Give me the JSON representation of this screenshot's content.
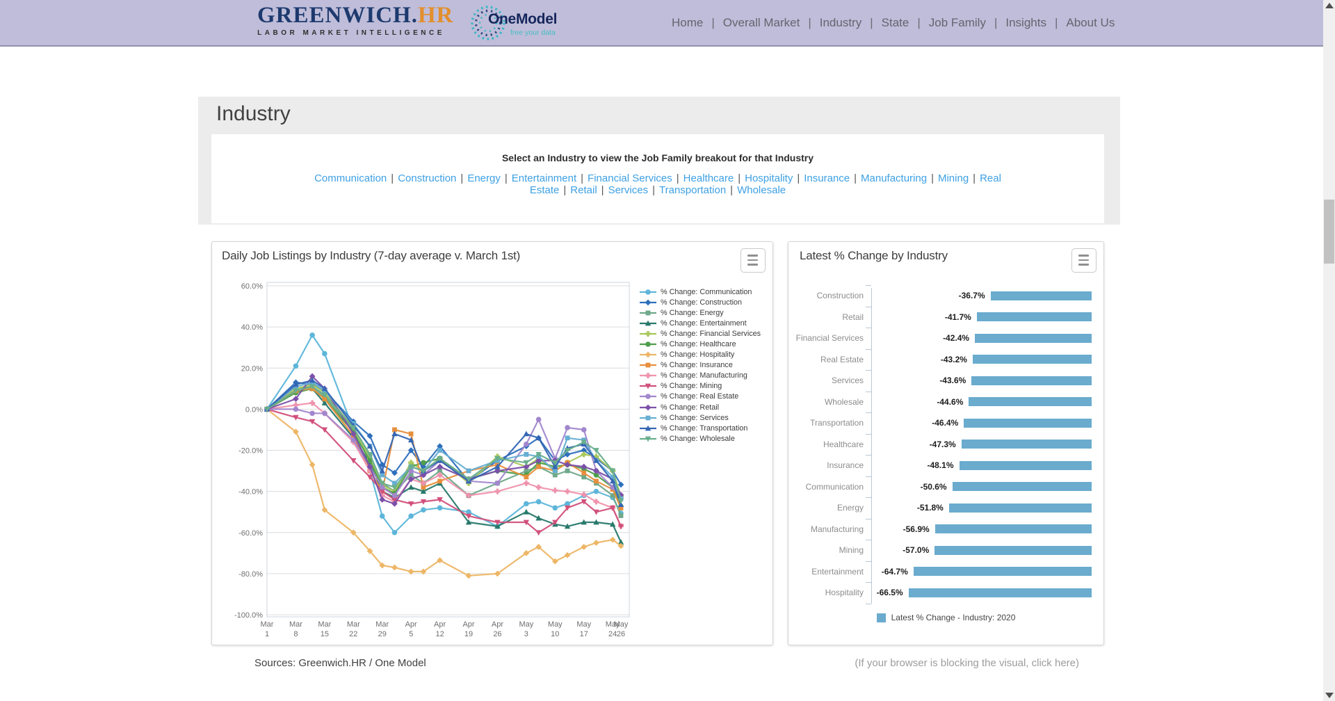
{
  "header": {
    "brand": {
      "name": "GREENWICH.",
      "hr": "HR",
      "tagline": "LABOR MARKET INTELLIGENCE"
    },
    "partner": {
      "name": "OneModel",
      "tagline": "free your data"
    },
    "nav": [
      "Home",
      "Overall Market",
      "Industry",
      "State",
      "Job Family",
      "Insights",
      "About Us"
    ],
    "nav_separator": "|"
  },
  "page": {
    "title": "Industry",
    "selector": {
      "prompt": "Select an Industry to view the Job Family breakout for that Industry",
      "links": [
        "Communication",
        "Construction",
        "Energy",
        "Entertainment",
        "Financial Services",
        "Healthcare",
        "Hospitality",
        "Insurance",
        "Manufacturing",
        "Mining",
        "Real Estate",
        "Retail",
        "Services",
        "Transportation",
        "Wholesale"
      ],
      "separator": "|"
    },
    "footer": {
      "sources": "Sources: Greenwich.HR / One Model",
      "blocked_note": "(If your browser is blocking the visual, click here)"
    }
  },
  "chart_data": [
    {
      "type": "line",
      "title": "Daily Job Listings by Industry (7-day average v. March 1st)",
      "ylim": [
        -100,
        60
      ],
      "y_ticks": [
        60,
        40,
        20,
        0,
        -20,
        -40,
        -60,
        -80,
        -100
      ],
      "grid": "horizontal",
      "legend_position": "right",
      "x_tick_labels": [
        {
          "m": "Mar",
          "d": "1",
          "day": 0
        },
        {
          "m": "Mar",
          "d": "8",
          "day": 7
        },
        {
          "m": "Mar",
          "d": "15",
          "day": 14
        },
        {
          "m": "Mar",
          "d": "22",
          "day": 21
        },
        {
          "m": "Mar",
          "d": "29",
          "day": 28
        },
        {
          "m": "Apr",
          "d": "5",
          "day": 35
        },
        {
          "m": "Apr",
          "d": "12",
          "day": 42
        },
        {
          "m": "Apr",
          "d": "19",
          "day": 49
        },
        {
          "m": "Apr",
          "d": "26",
          "day": 56
        },
        {
          "m": "May",
          "d": "3",
          "day": 63
        },
        {
          "m": "May",
          "d": "10",
          "day": 70
        },
        {
          "m": "May",
          "d": "17",
          "day": 77
        },
        {
          "m": "May",
          "d": "24",
          "day": 84
        },
        {
          "m": "May",
          "d": "26",
          "day": 86
        }
      ],
      "x_days": [
        0,
        7,
        11,
        14,
        21,
        25,
        28,
        31,
        35,
        38,
        42,
        49,
        56,
        63,
        66,
        70,
        73,
        77,
        80,
        84,
        86
      ],
      "series": [
        {
          "name": "% Change: Communication",
          "color": "#5db6da",
          "marker": "circle",
          "values": [
            0,
            21,
            36,
            27,
            -10,
            -30,
            -52,
            -60,
            -52,
            -49,
            -48,
            -50,
            -57,
            -46,
            -45,
            -48,
            -46,
            -42,
            -40,
            -43,
            -50.6
          ]
        },
        {
          "name": "% Change: Construction",
          "color": "#2e6fbd",
          "marker": "diamond",
          "values": [
            0,
            13,
            12,
            9,
            -6,
            -13,
            -27,
            -31,
            -20,
            -28,
            -18,
            -35,
            -25,
            -18,
            -14,
            -25,
            -22,
            -20,
            -24,
            -30,
            -36.7
          ]
        },
        {
          "name": "% Change: Energy",
          "color": "#6fa88a",
          "marker": "square",
          "values": [
            0,
            10,
            11,
            6,
            -10,
            -22,
            -36,
            -40,
            -32,
            -36,
            -30,
            -42,
            -36,
            -30,
            -28,
            -32,
            -30,
            -33,
            -36,
            -42,
            -51.8
          ]
        },
        {
          "name": "% Change: Entertainment",
          "color": "#28796b",
          "marker": "triangle-up",
          "values": [
            0,
            9,
            10,
            3,
            -14,
            -26,
            -40,
            -43,
            -38,
            -40,
            -36,
            -55,
            -57,
            -50,
            -53,
            -56,
            -57,
            -55,
            -55,
            -56,
            -64.7
          ]
        },
        {
          "name": "% Change: Financial Services",
          "color": "#a9c75b",
          "marker": "plus",
          "values": [
            0,
            10,
            12,
            8,
            -9,
            -24,
            -37,
            -40,
            -26,
            -30,
            -24,
            -36,
            -23,
            -28,
            -24,
            -30,
            -26,
            -22,
            -23,
            -30,
            -42.4
          ]
        },
        {
          "name": "% Change: Healthcare",
          "color": "#4f9e4c",
          "marker": "circle",
          "values": [
            0,
            8,
            10,
            5,
            -11,
            -25,
            -38,
            -41,
            -28,
            -26,
            -24,
            -34,
            -30,
            -32,
            -26,
            -28,
            -27,
            -29,
            -32,
            -38,
            -47.3
          ]
        },
        {
          "name": "% Change: Hospitality",
          "color": "#edb666",
          "marker": "diamond",
          "values": [
            0,
            -11,
            -27,
            -49,
            -60,
            -69,
            -76,
            -77,
            -79,
            -79,
            -73.5,
            -81,
            -80,
            -70,
            -67,
            -74,
            -71,
            -67,
            -65,
            -63.5,
            -66.5
          ]
        },
        {
          "name": "% Change: Insurance",
          "color": "#e78f3d",
          "marker": "square",
          "values": [
            0,
            9,
            10,
            5,
            -13,
            -30,
            -40,
            -10,
            -12,
            -38,
            -35,
            -30,
            -27,
            -33,
            -28,
            -30,
            -26,
            -31,
            -35,
            -39,
            -48.1
          ]
        },
        {
          "name": "% Change: Manufacturing",
          "color": "#ef93ad",
          "marker": "plus",
          "values": [
            0,
            2,
            3,
            -2,
            -16,
            -30,
            -42,
            -45,
            -34,
            -36,
            -32,
            -42,
            -40,
            -36,
            -38,
            -39.5,
            -40,
            -41.5,
            -45,
            -48,
            -56.9
          ]
        },
        {
          "name": "% Change: Mining",
          "color": "#d1507a",
          "marker": "triangle-down",
          "values": [
            0,
            -4,
            -6,
            -10,
            -25,
            -33,
            -40,
            -44,
            -46,
            -45,
            -44,
            -52,
            -55,
            -55,
            -60,
            -55,
            -48,
            -45,
            -50,
            -48,
            -57
          ]
        },
        {
          "name": "% Change: Real Estate",
          "color": "#a287cd",
          "marker": "circle",
          "values": [
            0,
            0,
            -2,
            -2,
            -15,
            -28,
            -38,
            -42,
            -30,
            -32,
            -25,
            -35,
            -36,
            -17,
            -5,
            -24,
            -9,
            -10,
            -30,
            -38,
            -43.2
          ]
        },
        {
          "name": "% Change: Retail",
          "color": "#7b50a9",
          "marker": "diamond",
          "values": [
            0,
            5,
            16,
            10,
            -12,
            -28,
            -44,
            -46,
            -34,
            -32,
            -28,
            -34,
            -30,
            -28,
            -25,
            -25,
            -27,
            -28,
            -30,
            -34,
            -41.7
          ]
        },
        {
          "name": "% Change: Services",
          "color": "#66aed4",
          "marker": "square",
          "values": [
            0,
            11,
            13,
            9,
            -7,
            -18,
            -32,
            -36,
            -28,
            -30,
            -20,
            -30,
            -25,
            -22,
            -23,
            -30,
            -14,
            -15,
            -25,
            -33,
            -43.6
          ]
        },
        {
          "name": "% Change: Transportation",
          "color": "#3566b4",
          "marker": "triangle-up",
          "values": [
            0,
            12,
            14,
            10,
            -8,
            -18,
            -30,
            -12,
            -15,
            -30,
            -25,
            -35,
            -28,
            -12,
            -14,
            -28,
            -19,
            -17,
            -25,
            -35,
            -46.4
          ]
        },
        {
          "name": "% Change: Wholesale",
          "color": "#69af8d",
          "marker": "triangle-down",
          "values": [
            0,
            9,
            11,
            7,
            -9,
            -22,
            -36,
            -38,
            -28,
            -30,
            -24,
            -34,
            -24,
            -26,
            -22,
            -26,
            -20,
            -16,
            -20,
            -30,
            -44.6
          ]
        }
      ]
    },
    {
      "type": "bar",
      "orientation": "horizontal",
      "title": "Latest % Change by Industry",
      "bar_color": "#6aabce",
      "xlim": [
        -80,
        0
      ],
      "legend": "Latest % Change - Industry: 2020",
      "categories": [
        "Construction",
        "Retail",
        "Financial Services",
        "Real Estate",
        "Services",
        "Wholesale",
        "Transportation",
        "Healthcare",
        "Insurance",
        "Communication",
        "Energy",
        "Manufacturing",
        "Mining",
        "Entertainment",
        "Hospitality"
      ],
      "values": [
        -36.7,
        -41.7,
        -42.4,
        -43.2,
        -43.6,
        -44.6,
        -46.4,
        -47.3,
        -48.1,
        -50.6,
        -51.8,
        -56.9,
        -57.0,
        -64.7,
        -66.5
      ],
      "value_labels": [
        "-36.7%",
        "-41.7%",
        "-42.4%",
        "-43.2%",
        "-43.6%",
        "-44.6%",
        "-46.4%",
        "-47.3%",
        "-48.1%",
        "-50.6%",
        "-51.8%",
        "-56.9%",
        "-57.0%",
        "-64.7%",
        "-66.5%"
      ]
    }
  ]
}
